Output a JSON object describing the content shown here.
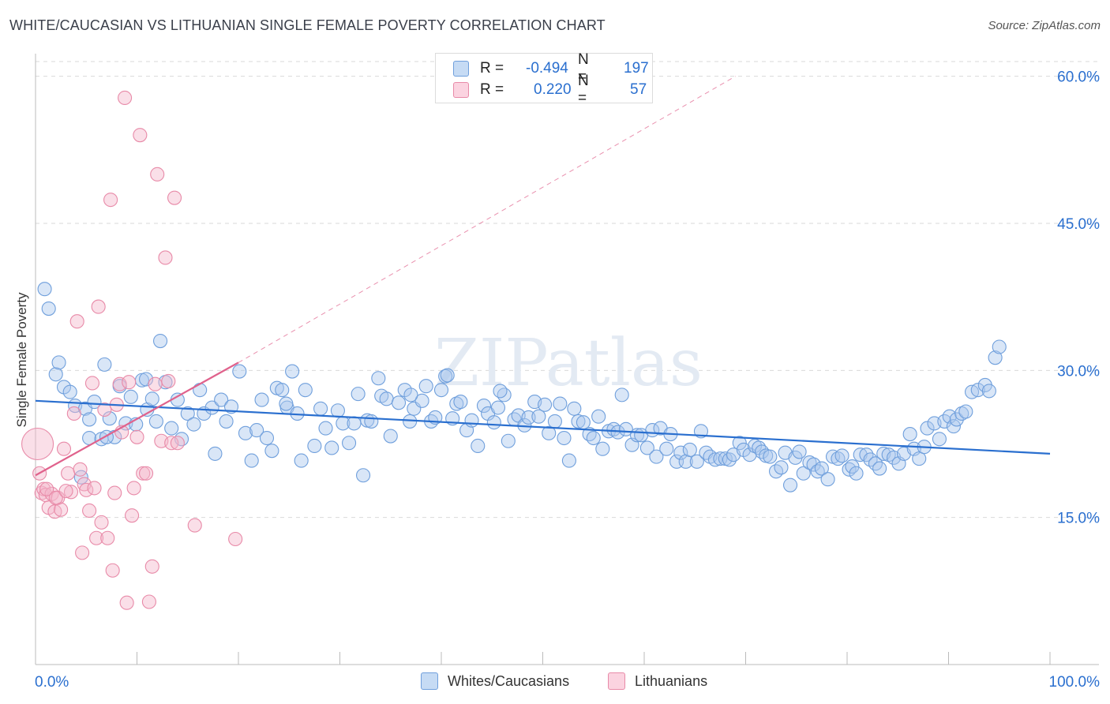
{
  "title": "WHITE/CAUCASIAN VS LITHUANIAN SINGLE FEMALE POVERTY CORRELATION CHART",
  "source": "Source: ZipAtlas.com",
  "watermark": "ZIPatlas",
  "legend": {
    "rows": [
      {
        "r_label": "R =",
        "r_value": "-0.494",
        "n_label": "N =",
        "n_value": "197"
      },
      {
        "r_label": "R =",
        "r_value": "0.220",
        "n_label": "N =",
        "n_value": "57"
      }
    ]
  },
  "bottom_legend": [
    "Whites/Caucasians",
    "Lithuanians"
  ],
  "colors": {
    "blue_fill": "#aac8ee",
    "blue_stroke": "#6f9fdc",
    "blue_line": "#2a6fcf",
    "pink_fill": "#f5b8cc",
    "pink_stroke": "#e88aa8",
    "pink_line": "#e0628c",
    "axis_text": "#2a6fcf",
    "grid": "#d9d9d9"
  },
  "chart_data": {
    "type": "scatter",
    "title": "WHITE/CAUCASIAN VS LITHUANIAN SINGLE FEMALE POVERTY CORRELATION CHART",
    "xlabel": "",
    "ylabel": "Single Female Poverty",
    "x_tick_labels": [
      "0.0%",
      "100.0%"
    ],
    "y_tick_labels": [
      "15.0%",
      "30.0%",
      "45.0%",
      "60.0%"
    ],
    "y_ticks": [
      15,
      30,
      45,
      60
    ],
    "xlim": [
      0,
      100
    ],
    "ylim": [
      0,
      61.5
    ],
    "grid": true,
    "series": [
      {
        "name": "Whites/Caucasians",
        "R": -0.494,
        "N": 197,
        "trend": {
          "x": [
            0,
            100
          ],
          "y": [
            26.9,
            21.5
          ]
        },
        "points": [
          [
            0.9,
            38.3
          ],
          [
            1.3,
            36.3
          ],
          [
            2.0,
            29.6
          ],
          [
            2.3,
            30.8
          ],
          [
            2.8,
            28.3
          ],
          [
            3.4,
            27.8
          ],
          [
            3.9,
            26.4
          ],
          [
            4.5,
            19.1
          ],
          [
            4.9,
            26.1
          ],
          [
            5.3,
            23.1
          ],
          [
            5.3,
            25.0
          ],
          [
            5.8,
            26.8
          ],
          [
            6.5,
            23.0
          ],
          [
            6.8,
            30.6
          ],
          [
            7.3,
            25.1
          ],
          [
            7.8,
            23.2
          ],
          [
            8.3,
            28.4
          ],
          [
            8.9,
            24.6
          ],
          [
            9.4,
            27.3
          ],
          [
            9.9,
            24.5
          ],
          [
            10.5,
            29.0
          ],
          [
            11.0,
            26.0
          ],
          [
            11.5,
            27.1
          ],
          [
            11.9,
            24.8
          ],
          [
            12.3,
            33.0
          ],
          [
            12.8,
            28.8
          ],
          [
            13.4,
            24.1
          ],
          [
            14.0,
            27.0
          ],
          [
            14.4,
            23.0
          ],
          [
            15.0,
            25.6
          ],
          [
            15.6,
            24.5
          ],
          [
            16.2,
            28.0
          ],
          [
            16.6,
            25.6
          ],
          [
            17.4,
            26.2
          ],
          [
            17.7,
            21.5
          ],
          [
            18.3,
            27.0
          ],
          [
            18.8,
            24.8
          ],
          [
            19.3,
            26.3
          ],
          [
            20.1,
            29.9
          ],
          [
            20.7,
            23.6
          ],
          [
            21.3,
            20.8
          ],
          [
            21.8,
            23.9
          ],
          [
            22.3,
            27.0
          ],
          [
            22.8,
            23.1
          ],
          [
            23.3,
            21.8
          ],
          [
            23.8,
            28.2
          ],
          [
            24.3,
            28.0
          ],
          [
            24.8,
            26.2
          ],
          [
            25.3,
            29.9
          ],
          [
            25.8,
            25.6
          ],
          [
            26.2,
            20.8
          ],
          [
            26.6,
            28.0
          ],
          [
            27.5,
            22.3
          ],
          [
            28.1,
            26.1
          ],
          [
            28.6,
            24.1
          ],
          [
            29.2,
            22.1
          ],
          [
            29.8,
            25.9
          ],
          [
            30.3,
            24.6
          ],
          [
            30.9,
            22.6
          ],
          [
            31.4,
            24.6
          ],
          [
            31.8,
            27.6
          ],
          [
            32.3,
            19.3
          ],
          [
            32.7,
            24.9
          ],
          [
            33.1,
            24.8
          ],
          [
            33.8,
            29.2
          ],
          [
            34.1,
            27.4
          ],
          [
            34.6,
            27.1
          ],
          [
            35.0,
            23.3
          ],
          [
            35.8,
            26.7
          ],
          [
            36.4,
            28.0
          ],
          [
            36.9,
            24.8
          ],
          [
            37.3,
            26.1
          ],
          [
            38.1,
            26.9
          ],
          [
            38.5,
            28.4
          ],
          [
            39.0,
            24.8
          ],
          [
            39.4,
            25.2
          ],
          [
            40.0,
            28.0
          ],
          [
            40.4,
            29.4
          ],
          [
            41.1,
            25.1
          ],
          [
            41.5,
            26.6
          ],
          [
            41.9,
            26.8
          ],
          [
            42.5,
            23.9
          ],
          [
            43.0,
            24.9
          ],
          [
            43.6,
            22.3
          ],
          [
            44.2,
            26.4
          ],
          [
            44.6,
            25.6
          ],
          [
            45.2,
            24.7
          ],
          [
            45.6,
            26.2
          ],
          [
            46.2,
            27.5
          ],
          [
            46.6,
            22.8
          ],
          [
            47.2,
            25.0
          ],
          [
            47.6,
            25.4
          ],
          [
            48.2,
            24.4
          ],
          [
            48.6,
            25.2
          ],
          [
            49.2,
            26.8
          ],
          [
            49.6,
            25.3
          ],
          [
            50.2,
            26.5
          ],
          [
            50.6,
            23.6
          ],
          [
            51.2,
            24.8
          ],
          [
            51.7,
            26.6
          ],
          [
            52.1,
            23.1
          ],
          [
            52.6,
            20.8
          ],
          [
            53.1,
            26.1
          ],
          [
            53.5,
            24.8
          ],
          [
            54.0,
            24.7
          ],
          [
            54.6,
            23.5
          ],
          [
            55.0,
            23.1
          ],
          [
            55.5,
            25.3
          ],
          [
            55.9,
            22.0
          ],
          [
            56.5,
            23.8
          ],
          [
            57.0,
            24.0
          ],
          [
            57.4,
            23.7
          ],
          [
            57.8,
            27.5
          ],
          [
            58.2,
            24.0
          ],
          [
            58.8,
            22.4
          ],
          [
            59.3,
            23.4
          ],
          [
            59.7,
            23.4
          ],
          [
            60.3,
            22.1
          ],
          [
            60.8,
            23.9
          ],
          [
            61.2,
            21.2
          ],
          [
            61.6,
            24.1
          ],
          [
            62.2,
            22.0
          ],
          [
            62.6,
            23.5
          ],
          [
            63.2,
            20.7
          ],
          [
            63.6,
            21.6
          ],
          [
            64.1,
            20.7
          ],
          [
            64.5,
            21.9
          ],
          [
            65.2,
            20.7
          ],
          [
            65.6,
            23.8
          ],
          [
            66.1,
            21.6
          ],
          [
            66.5,
            21.2
          ],
          [
            67.0,
            20.9
          ],
          [
            67.5,
            21.0
          ],
          [
            68.0,
            21.0
          ],
          [
            68.4,
            20.9
          ],
          [
            68.8,
            21.4
          ],
          [
            69.4,
            22.6
          ],
          [
            69.8,
            21.9
          ],
          [
            70.4,
            21.4
          ],
          [
            70.9,
            22.3
          ],
          [
            71.3,
            22.1
          ],
          [
            71.6,
            21.7
          ],
          [
            72.0,
            21.3
          ],
          [
            72.4,
            21.2
          ],
          [
            73.0,
            19.7
          ],
          [
            73.5,
            20.1
          ],
          [
            73.9,
            21.6
          ],
          [
            74.4,
            18.3
          ],
          [
            74.9,
            21.1
          ],
          [
            75.3,
            21.7
          ],
          [
            75.7,
            19.5
          ],
          [
            76.3,
            20.6
          ],
          [
            76.7,
            20.4
          ],
          [
            77.1,
            19.7
          ],
          [
            77.5,
            20.0
          ],
          [
            78.1,
            18.9
          ],
          [
            78.6,
            21.2
          ],
          [
            79.1,
            21.0
          ],
          [
            79.5,
            21.3
          ],
          [
            80.2,
            19.9
          ],
          [
            80.5,
            20.2
          ],
          [
            80.9,
            19.5
          ],
          [
            81.3,
            21.4
          ],
          [
            81.9,
            21.4
          ],
          [
            82.3,
            20.9
          ],
          [
            82.8,
            20.5
          ],
          [
            83.2,
            20.0
          ],
          [
            83.6,
            21.5
          ],
          [
            84.1,
            21.4
          ],
          [
            84.6,
            21.1
          ],
          [
            85.1,
            20.5
          ],
          [
            85.6,
            21.5
          ],
          [
            86.2,
            23.5
          ],
          [
            86.6,
            22.0
          ],
          [
            87.1,
            21.0
          ],
          [
            87.6,
            22.2
          ],
          [
            87.9,
            24.1
          ],
          [
            88.6,
            24.6
          ],
          [
            89.1,
            23.0
          ],
          [
            89.6,
            24.8
          ],
          [
            90.1,
            25.3
          ],
          [
            90.5,
            24.3
          ],
          [
            90.8,
            25.0
          ],
          [
            91.3,
            25.6
          ],
          [
            91.7,
            25.8
          ],
          [
            92.3,
            27.8
          ],
          [
            92.9,
            28.0
          ],
          [
            93.6,
            28.5
          ],
          [
            94.0,
            27.9
          ],
          [
            94.6,
            31.3
          ],
          [
            95.0,
            32.4
          ],
          [
            40.6,
            29.5
          ],
          [
            45.8,
            27.9
          ],
          [
            37.0,
            27.5
          ],
          [
            24.7,
            26.6
          ],
          [
            10.9,
            29.1
          ],
          [
            7.0,
            23.2
          ]
        ]
      },
      {
        "name": "Lithuanians",
        "R": 0.22,
        "N": 57,
        "trend": {
          "x": [
            0,
            20
          ],
          "y": [
            19.3,
            30.8
          ]
        },
        "trend_extended": {
          "x": [
            20,
            69
          ],
          "y": [
            30.8,
            60.0
          ]
        },
        "points": [
          [
            0.2,
            22.5
          ],
          [
            0.4,
            19.5
          ],
          [
            0.6,
            17.5
          ],
          [
            0.8,
            17.9
          ],
          [
            1.0,
            17.3
          ],
          [
            1.3,
            16.0
          ],
          [
            1.6,
            17.4
          ],
          [
            1.9,
            15.6
          ],
          [
            2.2,
            17.0
          ],
          [
            2.5,
            15.8
          ],
          [
            2.8,
            22.0
          ],
          [
            3.2,
            19.5
          ],
          [
            3.5,
            17.6
          ],
          [
            3.8,
            25.6
          ],
          [
            4.1,
            35.0
          ],
          [
            4.4,
            19.9
          ],
          [
            4.6,
            11.4
          ],
          [
            4.8,
            18.4
          ],
          [
            5.0,
            17.8
          ],
          [
            5.3,
            15.7
          ],
          [
            5.6,
            28.7
          ],
          [
            5.8,
            18.0
          ],
          [
            6.0,
            12.9
          ],
          [
            6.2,
            36.5
          ],
          [
            6.5,
            14.5
          ],
          [
            6.8,
            26.0
          ],
          [
            7.1,
            12.9
          ],
          [
            7.4,
            47.4
          ],
          [
            7.6,
            9.6
          ],
          [
            7.8,
            17.5
          ],
          [
            8.0,
            26.5
          ],
          [
            8.3,
            28.6
          ],
          [
            8.5,
            23.7
          ],
          [
            8.8,
            57.8
          ],
          [
            9.0,
            6.3
          ],
          [
            9.2,
            28.8
          ],
          [
            9.5,
            15.2
          ],
          [
            9.7,
            18.0
          ],
          [
            10.0,
            23.2
          ],
          [
            10.3,
            54.0
          ],
          [
            10.6,
            19.5
          ],
          [
            10.9,
            19.5
          ],
          [
            11.2,
            6.4
          ],
          [
            11.5,
            10.0
          ],
          [
            11.8,
            28.6
          ],
          [
            12.0,
            50.0
          ],
          [
            12.4,
            22.8
          ],
          [
            12.8,
            41.5
          ],
          [
            13.1,
            28.9
          ],
          [
            13.4,
            22.6
          ],
          [
            13.7,
            47.6
          ],
          [
            14.0,
            22.6
          ],
          [
            15.7,
            14.2
          ],
          [
            19.7,
            12.8
          ],
          [
            1.1,
            17.9
          ],
          [
            2.0,
            17.0
          ],
          [
            3.0,
            17.7
          ]
        ]
      }
    ]
  }
}
